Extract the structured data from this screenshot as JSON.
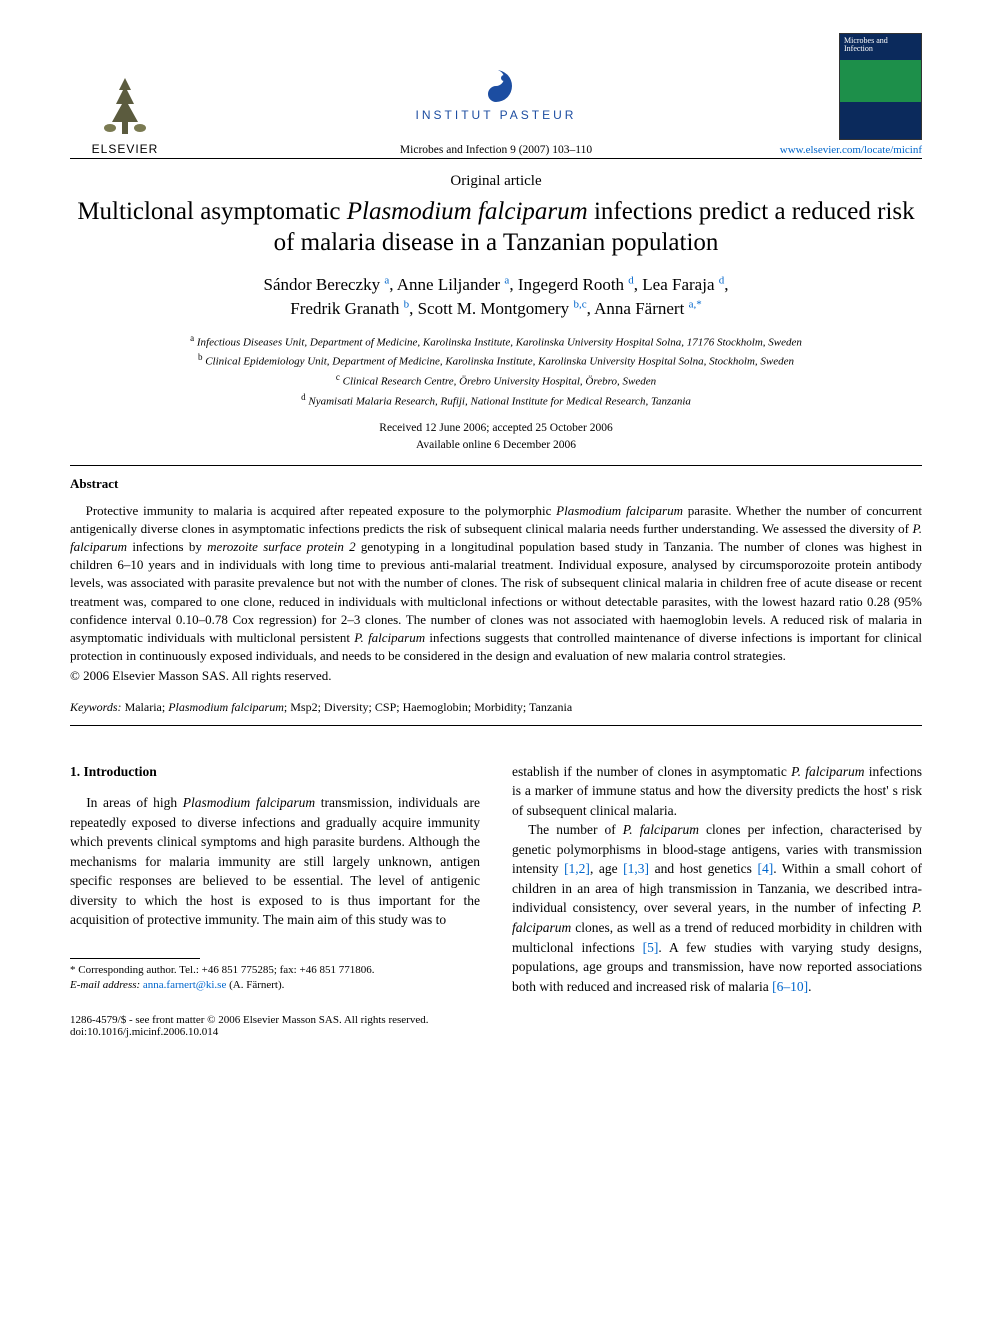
{
  "header": {
    "elsevier_label": "ELSEVIER",
    "pasteur_label": "INSTITUT PASTEUR",
    "journal_ref": "Microbes and Infection 9 (2007) 103–110",
    "cover_text": "Microbes and Infection",
    "elsevier_link": "www.elsevier.com/locate/micinf"
  },
  "category": "Original article",
  "title_pre": "Multiclonal asymptomatic ",
  "title_italic": "Plasmodium falciparum",
  "title_post": " infections predict a reduced risk of malaria disease in a Tanzanian population",
  "authors_html": "Sándor Bereczky <sup>a</sup>, Anne Liljander <sup>a</sup>, Ingegerd Rooth <sup>d</sup>, Lea Faraja <sup>d</sup>,<br>Fredrik Granath <sup>b</sup>, Scott M. Montgomery <sup>b,c</sup>, Anna Färnert <sup>a,*</sup>",
  "affiliations": {
    "a": "Infectious Diseases Unit, Department of Medicine, Karolinska Institute, Karolinska University Hospital Solna, 17176 Stockholm, Sweden",
    "b": "Clinical Epidemiology Unit, Department of Medicine, Karolinska Institute, Karolinska University Hospital Solna, Stockholm, Sweden",
    "c": "Clinical Research Centre, Örebro University Hospital, Örebro, Sweden",
    "d": "Nyamisati Malaria Research, Rufiji, National Institute for Medical Research, Tanzania"
  },
  "dates": {
    "received_accepted": "Received 12 June 2006; accepted 25 October 2006",
    "online": "Available online 6 December 2006"
  },
  "abstract": {
    "label": "Abstract",
    "text": "Protective immunity to malaria is acquired after repeated exposure to the polymorphic Plasmodium falciparum parasite. Whether the number of concurrent antigenically diverse clones in asymptomatic infections predicts the risk of subsequent clinical malaria needs further understanding. We assessed the diversity of P. falciparum infections by merozoite surface protein 2 genotyping in a longitudinal population based study in Tanzania. The number of clones was highest in children 6–10 years and in individuals with long time to previous anti-malarial treatment. Individual exposure, analysed by circumsporozoite protein antibody levels, was associated with parasite prevalence but not with the number of clones. The risk of subsequent clinical malaria in children free of acute disease or recent treatment was, compared to one clone, reduced in individuals with multiclonal infections or without detectable parasites, with the lowest hazard ratio 0.28 (95% confidence interval 0.10–0.78 Cox regression) for 2–3 clones. The number of clones was not associated with haemoglobin levels. A reduced risk of malaria in asymptomatic individuals with multiclonal persistent P. falciparum infections suggests that controlled maintenance of diverse infections is important for clinical protection in continuously exposed individuals, and needs to be considered in the design and evaluation of new malaria control strategies.",
    "copyright": "© 2006 Elsevier Masson SAS. All rights reserved."
  },
  "keywords": {
    "label": "Keywords:",
    "text": "Malaria; Plasmodium falciparum; Msp2; Diversity; CSP; Haemoglobin; Morbidity; Tanzania"
  },
  "body": {
    "section_head": "1. Introduction",
    "left_p1": "In areas of high Plasmodium falciparum transmission, individuals are repeatedly exposed to diverse infections and gradually acquire immunity which prevents clinical symptoms and high parasite burdens. Although the mechanisms for malaria immunity are still largely unknown, antigen specific responses are believed to be essential. The level of antigenic diversity to which the host is exposed to is thus important for the acquisition of protective immunity. The main aim of this study was to",
    "right_p1": "establish if the number of clones in asymptomatic P. falciparum infections is a marker of immune status and how the diversity predicts the host' s risk of subsequent clinical malaria.",
    "right_p2_a": "The number of ",
    "right_p2_b": " clones per infection, characterised by genetic polymorphisms in blood-stage antigens, varies with transmission intensity ",
    "right_p2_c": ", age ",
    "right_p2_d": " and host genetics ",
    "right_p2_e": ". Within a small cohort of children in an area of high transmission in Tanzania, we described intra-individual consistency, over several years, in the number of infecting ",
    "right_p2_f": " clones, as well as a trend of reduced morbidity in children with multiclonal infections ",
    "right_p2_g": ". A few studies with varying study designs, populations, age groups and transmission, have now reported associations both with reduced and increased risk of malaria ",
    "right_p2_h": ".",
    "refs": {
      "r12": "[1,2]",
      "r13": "[1,3]",
      "r4": "[4]",
      "r5": "[5]",
      "r610": "[6–10]"
    },
    "italic_pf": "P. falciparum"
  },
  "footnote": {
    "corr_line": "* Corresponding author. Tel.: +46 851 775285; fax: +46 851 771806.",
    "email_label": "E-mail address:",
    "email": "anna.farnert@ki.se",
    "email_who": " (A. Färnert)."
  },
  "footer": {
    "issn": "1286-4579/$ - see front matter © 2006 Elsevier Masson SAS. All rights reserved.",
    "doi": "doi:10.1016/j.micinf.2006.10.014"
  },
  "colors": {
    "link": "#0066cc",
    "pasteur": "#1c4da1",
    "text": "#000000",
    "bg": "#ffffff"
  }
}
